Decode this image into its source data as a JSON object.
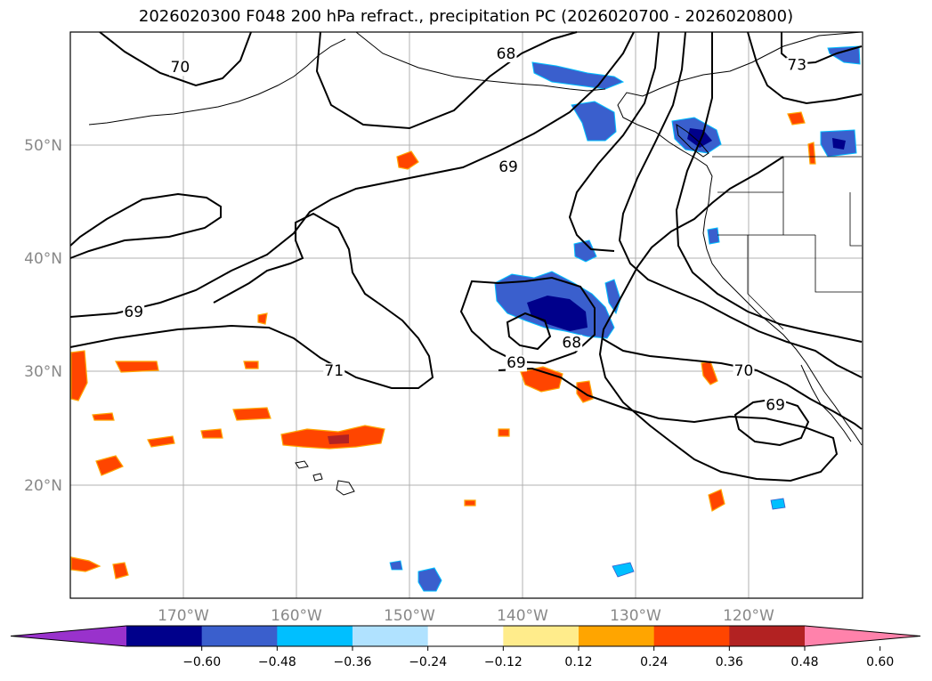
{
  "title": "2026020300 F048 200 hPa refract., precipitation PC (2026020700 - 2026020800)",
  "lat_labels": [
    {
      "value": 50,
      "text": "50°N"
    },
    {
      "value": 40,
      "text": "40°N"
    },
    {
      "value": 30,
      "text": "30°N"
    },
    {
      "value": 20,
      "text": "20°N"
    }
  ],
  "lon_labels": [
    {
      "value": -170,
      "text": "170°W"
    },
    {
      "value": -160,
      "text": "160°W"
    },
    {
      "value": -150,
      "text": "150°W"
    },
    {
      "value": -140,
      "text": "140°W"
    },
    {
      "value": -130,
      "text": "130°W"
    },
    {
      "value": -120,
      "text": "120°W"
    }
  ],
  "contour_labels": [
    {
      "text": "70",
      "lon": -170.3,
      "lat": 56.6
    },
    {
      "text": "68",
      "lon": -141.5,
      "lat": 57.8
    },
    {
      "text": "73",
      "lon": -115.8,
      "lat": 56.8
    },
    {
      "text": "69",
      "lon": -141.3,
      "lat": 47.8
    },
    {
      "text": "69",
      "lon": -174.4,
      "lat": 35.0
    },
    {
      "text": "71",
      "lon": -156.7,
      "lat": 29.8
    },
    {
      "text": "68",
      "lon": -135.7,
      "lat": 32.3
    },
    {
      "text": "69",
      "lon": -140.6,
      "lat": 30.5
    },
    {
      "text": "70",
      "lon": -120.5,
      "lat": 29.8
    },
    {
      "text": "69",
      "lon": -117.7,
      "lat": 26.8
    }
  ],
  "colorbar": {
    "colors": [
      "#9932cc",
      "#00008b",
      "#3a5fcd",
      "#00bfff",
      "#b0e2ff",
      "#ffffff",
      "#ffec8b",
      "#ffa500",
      "#ff4500",
      "#b22222",
      "#ff82ab"
    ],
    "ticks": [
      "−0.60",
      "−0.48",
      "−0.36",
      "−0.24",
      "−0.12",
      "0.12",
      "0.24",
      "0.36",
      "0.48",
      "0.60"
    ]
  },
  "colors": {
    "grid": "#b0b0b0",
    "coast": "#000000",
    "contour": "#000000"
  }
}
